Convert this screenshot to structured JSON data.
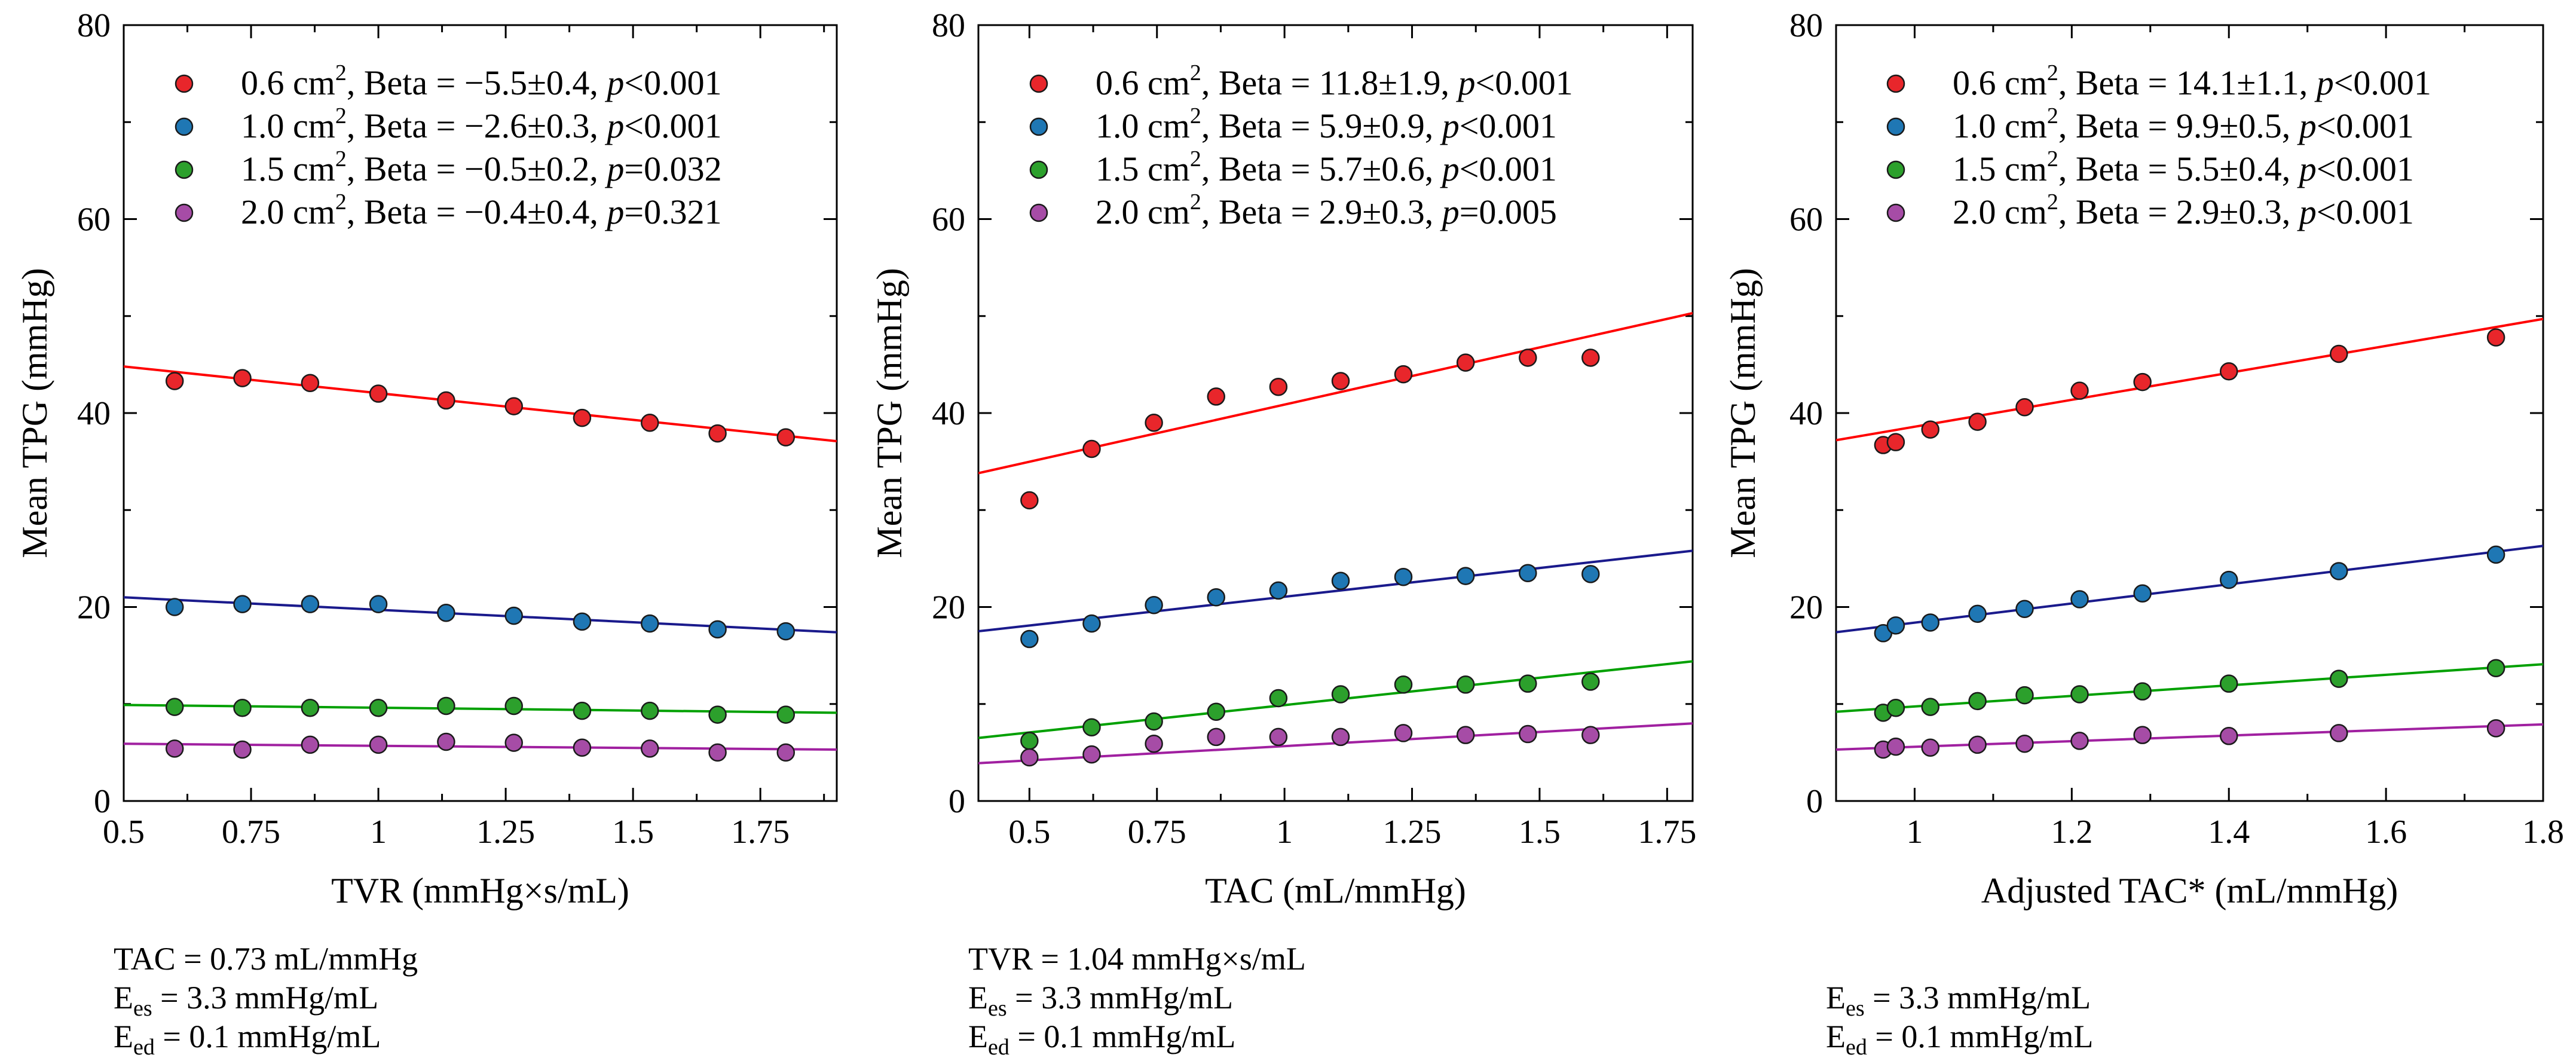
{
  "chart_data": [
    {
      "type": "scatter",
      "xlabel": "TVR (mmHg×s/mL)",
      "ylabel": "Mean TPG (mmHg)",
      "xlim": [
        0.5,
        1.9
      ],
      "ylim": [
        0,
        80
      ],
      "xticks": [
        0.5,
        0.75,
        1,
        1.25,
        1.5,
        1.75
      ],
      "xtick_labels": [
        "0.5",
        "0.75",
        "1",
        "1.25",
        "1.5",
        "1.75"
      ],
      "yticks": [
        0,
        20,
        40,
        60,
        80
      ],
      "ytick_labels": [
        "0",
        "20",
        "40",
        "60",
        "80"
      ],
      "legend_position": "top",
      "series": [
        {
          "name": "0.6 cm²",
          "area": "0.6 cm",
          "sup": "2",
          "beta_text": ", Beta = −5.5±0.4, ",
          "p_label": "p",
          "p_text": "<0.001",
          "color": "#e8262b",
          "line_color": "#ff0000",
          "x": [
            0.6,
            0.733,
            0.866,
            1.0,
            1.133,
            1.266,
            1.4,
            1.533,
            1.666,
            1.8
          ],
          "values": [
            43.3,
            43.6,
            43.1,
            42.0,
            41.3,
            40.7,
            39.5,
            39.0,
            37.9,
            37.5
          ],
          "fit_x": [
            0.5,
            1.9
          ],
          "fit_y": [
            44.8,
            37.1
          ]
        },
        {
          "name": "1.0 cm²",
          "area": "1.0 cm",
          "sup": "2",
          "beta_text": ", Beta = −2.6±0.3, ",
          "p_label": "p",
          "p_text": "<0.001",
          "color": "#1f77b4",
          "line_color": "#1a1a8c",
          "x": [
            0.6,
            0.733,
            0.866,
            1.0,
            1.133,
            1.266,
            1.4,
            1.533,
            1.666,
            1.8
          ],
          "values": [
            20.0,
            20.3,
            20.3,
            20.3,
            19.4,
            19.1,
            18.5,
            18.3,
            17.7,
            17.5
          ],
          "fit_x": [
            0.5,
            1.9
          ],
          "fit_y": [
            21.0,
            17.4
          ]
        },
        {
          "name": "1.5 cm²",
          "area": "1.5 cm",
          "sup": "2",
          "beta_text": ", Beta = −0.5±0.2, ",
          "p_label": "p",
          "p_text": "=0.032",
          "color": "#2ca02c",
          "line_color": "#00a000",
          "x": [
            0.6,
            0.733,
            0.866,
            1.0,
            1.133,
            1.266,
            1.4,
            1.533,
            1.666,
            1.8
          ],
          "values": [
            9.7,
            9.6,
            9.6,
            9.6,
            9.8,
            9.8,
            9.3,
            9.3,
            8.9,
            8.9
          ],
          "fit_x": [
            0.5,
            1.9
          ],
          "fit_y": [
            9.9,
            9.1
          ]
        },
        {
          "name": "2.0 cm²",
          "area": "2.0 cm",
          "sup": "2",
          "beta_text": ", Beta = −0.4±0.4, ",
          "p_label": "p",
          "p_text": "=0.321",
          "color": "#a64ca6",
          "line_color": "#a020a0",
          "x": [
            0.6,
            0.733,
            0.866,
            1.0,
            1.133,
            1.266,
            1.4,
            1.533,
            1.666,
            1.8
          ],
          "values": [
            5.4,
            5.3,
            5.8,
            5.8,
            6.1,
            6.0,
            5.5,
            5.4,
            5.0,
            5.0
          ],
          "fit_x": [
            0.5,
            1.9
          ],
          "fit_y": [
            5.9,
            5.3
          ]
        }
      ],
      "notes": [
        {
          "main": "TAC",
          "sub": "",
          "rest": " = 0.73 mL/mmHg"
        },
        {
          "main": "E",
          "sub": "es",
          "rest": " = 3.3 mmHg/mL"
        },
        {
          "main": "E",
          "sub": "ed",
          "rest": " = 0.1 mmHg/mL"
        }
      ]
    },
    {
      "type": "scatter",
      "xlabel": "TAC (mL/mmHg)",
      "ylabel": "Mean TPG (mmHg)",
      "xlim": [
        0.4,
        1.8
      ],
      "ylim": [
        0,
        80
      ],
      "xticks": [
        0.5,
        0.75,
        1,
        1.25,
        1.5,
        1.75
      ],
      "xtick_labels": [
        "0.5",
        "0.75",
        "1",
        "1.25",
        "1.5",
        "1.75"
      ],
      "yticks": [
        0,
        20,
        40,
        60,
        80
      ],
      "ytick_labels": [
        "0",
        "20",
        "40",
        "60",
        "80"
      ],
      "legend_position": "top",
      "series": [
        {
          "name": "0.6 cm²",
          "area": "0.6 cm",
          "sup": "2",
          "beta_text": ", Beta = 11.8±1.9, ",
          "p_label": "p",
          "p_text": "<0.001",
          "color": "#e8262b",
          "line_color": "#ff0000",
          "x": [
            0.5,
            0.622,
            0.744,
            0.866,
            0.988,
            1.11,
            1.233,
            1.355,
            1.477,
            1.6
          ],
          "values": [
            31.0,
            36.3,
            39.0,
            41.7,
            42.7,
            43.3,
            44.0,
            45.2,
            45.7,
            45.7
          ],
          "fit_x": [
            0.4,
            1.8
          ],
          "fit_y": [
            33.8,
            50.3
          ]
        },
        {
          "name": "1.0 cm²",
          "area": "1.0 cm",
          "sup": "2",
          "beta_text": ", Beta = 5.9±0.9, ",
          "p_label": "p",
          "p_text": "<0.001",
          "color": "#1f77b4",
          "line_color": "#1a1a8c",
          "x": [
            0.5,
            0.622,
            0.744,
            0.866,
            0.988,
            1.11,
            1.233,
            1.355,
            1.477,
            1.6
          ],
          "values": [
            16.7,
            18.3,
            20.2,
            21.0,
            21.7,
            22.7,
            23.1,
            23.2,
            23.5,
            23.4
          ],
          "fit_x": [
            0.4,
            1.8
          ],
          "fit_y": [
            17.5,
            25.8
          ]
        },
        {
          "name": "1.5 cm²",
          "area": "1.5 cm",
          "sup": "2",
          "beta_text": ", Beta = 5.7±0.6, ",
          "p_label": "p",
          "p_text": "<0.001",
          "color": "#2ca02c",
          "line_color": "#00a000",
          "x": [
            0.5,
            0.622,
            0.744,
            0.866,
            0.988,
            1.11,
            1.233,
            1.355,
            1.477,
            1.6
          ],
          "values": [
            6.2,
            7.6,
            8.2,
            9.2,
            10.6,
            11.0,
            12.0,
            12.0,
            12.1,
            12.3
          ],
          "fit_x": [
            0.4,
            1.8
          ],
          "fit_y": [
            6.5,
            14.4
          ]
        },
        {
          "name": "2.0 cm²",
          "area": "2.0 cm",
          "sup": "2",
          "beta_text": ", Beta = 2.9±0.3, ",
          "p_label": "p",
          "p_text": "=0.005",
          "color": "#a64ca6",
          "line_color": "#a020a0",
          "x": [
            0.5,
            0.622,
            0.744,
            0.866,
            0.988,
            1.11,
            1.233,
            1.355,
            1.477,
            1.6
          ],
          "values": [
            4.5,
            4.8,
            5.9,
            6.6,
            6.6,
            6.6,
            7.0,
            6.8,
            6.9,
            6.8
          ],
          "fit_x": [
            0.4,
            1.8
          ],
          "fit_y": [
            3.9,
            8.0
          ]
        }
      ],
      "notes": [
        {
          "main": "TVR",
          "sub": "",
          "rest": " = 1.04 mmHg×s/mL"
        },
        {
          "main": "E",
          "sub": "es",
          "rest": " = 3.3 mmHg/mL"
        },
        {
          "main": "E",
          "sub": "ed",
          "rest": " = 0.1 mmHg/mL"
        }
      ]
    },
    {
      "type": "scatter",
      "xlabel": "Adjusted TAC* (mL/mmHg)",
      "ylabel": "Mean TPG (mmHg)",
      "xlim": [
        0.9,
        1.8
      ],
      "ylim": [
        0,
        80
      ],
      "xticks": [
        1,
        1.2,
        1.4,
        1.6,
        1.8
      ],
      "xtick_labels": [
        "1",
        "1.2",
        "1.4",
        "1.6",
        "1.8"
      ],
      "yticks": [
        0,
        20,
        40,
        60,
        80
      ],
      "ytick_labels": [
        "0",
        "20",
        "40",
        "60",
        "80"
      ],
      "legend_position": "top",
      "series": [
        {
          "name": "0.6 cm²",
          "area": "0.6 cm",
          "sup": "2",
          "beta_text": ", Beta = 14.1±1.1, ",
          "p_label": "p",
          "p_text": "<0.001",
          "color": "#e8262b",
          "line_color": "#ff0000",
          "x": [
            0.96,
            0.976,
            1.02,
            1.08,
            1.14,
            1.21,
            1.29,
            1.4,
            1.54,
            1.74
          ],
          "values": [
            36.7,
            37.0,
            38.3,
            39.1,
            40.6,
            42.3,
            43.2,
            44.3,
            46.1,
            47.8
          ],
          "fit_x": [
            0.9,
            1.8
          ],
          "fit_y": [
            37.2,
            49.7
          ]
        },
        {
          "name": "1.0 cm²",
          "area": "1.0 cm",
          "sup": "2",
          "beta_text": ", Beta = 9.9±0.5, ",
          "p_label": "p",
          "p_text": "<0.001",
          "color": "#1f77b4",
          "line_color": "#1a1a8c",
          "x": [
            0.96,
            0.976,
            1.02,
            1.08,
            1.14,
            1.21,
            1.29,
            1.4,
            1.54,
            1.74
          ],
          "values": [
            17.3,
            18.1,
            18.4,
            19.3,
            19.8,
            20.8,
            21.4,
            22.8,
            23.7,
            25.4
          ],
          "fit_x": [
            0.9,
            1.8
          ],
          "fit_y": [
            17.4,
            26.3
          ]
        },
        {
          "name": "1.5 cm²",
          "area": "1.5 cm",
          "sup": "2",
          "beta_text": ", Beta = 5.5±0.4, ",
          "p_label": "p",
          "p_text": "<0.001",
          "color": "#2ca02c",
          "line_color": "#00a000",
          "x": [
            0.96,
            0.976,
            1.02,
            1.08,
            1.14,
            1.21,
            1.29,
            1.4,
            1.54,
            1.74
          ],
          "values": [
            9.1,
            9.6,
            9.7,
            10.3,
            10.9,
            11.0,
            11.3,
            12.1,
            12.6,
            13.7
          ],
          "fit_x": [
            0.9,
            1.8
          ],
          "fit_y": [
            9.2,
            14.1
          ]
        },
        {
          "name": "2.0 cm²",
          "area": "2.0 cm",
          "sup": "2",
          "beta_text": ", Beta = 2.9±0.3, ",
          "p_label": "p",
          "p_text": "<0.001",
          "color": "#a64ca6",
          "line_color": "#a020a0",
          "x": [
            0.96,
            0.976,
            1.02,
            1.08,
            1.14,
            1.21,
            1.29,
            1.4,
            1.54,
            1.74
          ],
          "values": [
            5.3,
            5.6,
            5.5,
            5.8,
            5.9,
            6.2,
            6.8,
            6.7,
            7.0,
            7.5
          ],
          "fit_x": [
            0.9,
            1.8
          ],
          "fit_y": [
            5.3,
            7.9
          ]
        }
      ],
      "notes": [
        {
          "main": "E",
          "sub": "es",
          "rest": " = 3.3 mmHg/mL"
        },
        {
          "main": "E",
          "sub": "ed",
          "rest": " = 0.1 mmHg/mL"
        }
      ]
    }
  ]
}
